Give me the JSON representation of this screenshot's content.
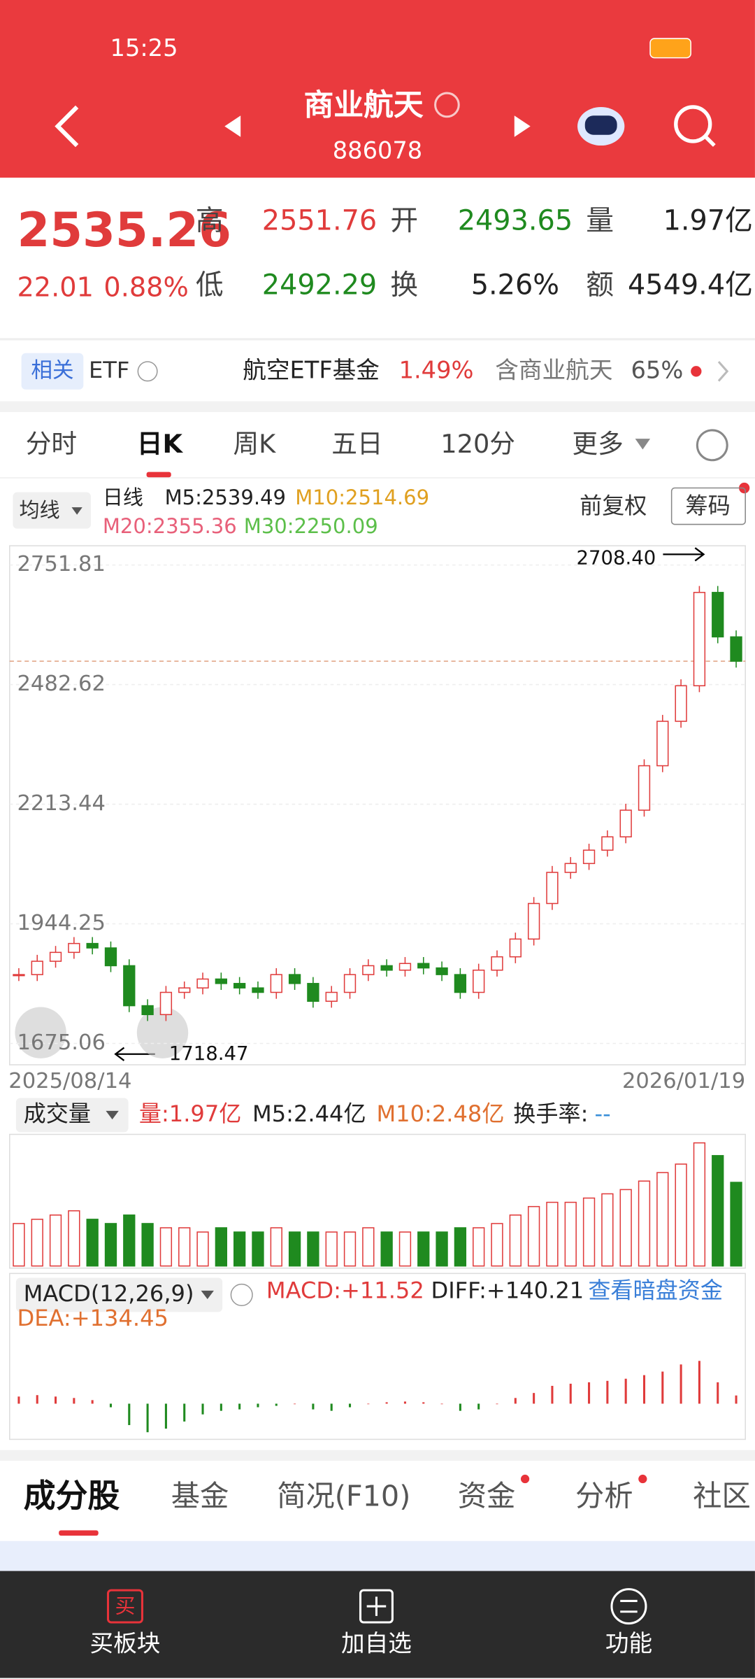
{
  "status_bar": {
    "time": "15:25"
  },
  "header": {
    "title": "商业航天",
    "code": "886078"
  },
  "quote": {
    "price": 2535.26,
    "change": "22.01",
    "change_pct": "0.88%",
    "fields": [
      {
        "label": "高",
        "value": "2551.76"
      },
      {
        "label": "开",
        "value": "2493.65"
      },
      {
        "label": "量",
        "value": "1.97亿"
      },
      {
        "label": "低",
        "value": "2492.29"
      },
      {
        "label": "换",
        "value": "5.26%"
      },
      {
        "label": "额",
        "value": "4549.4亿"
      }
    ]
  },
  "etf": {
    "badge": "相关",
    "label": "ETF",
    "name": "航空ETF基金",
    "pct": "1.49%",
    "holds": "含商业航天",
    "holds_pct": "65%"
  },
  "period_tabs": [
    "分时",
    "日K",
    "周K",
    "五日",
    "120分",
    "更多"
  ],
  "ma_legend": {
    "selector": "均线",
    "kind": "日线",
    "m5": "M5:2539.49",
    "m10": "M10:2514.69",
    "m20": "M20:2355.36",
    "m30": "M30:2250.09",
    "adjust": "前复权",
    "chips": "筹码"
  },
  "kline": {
    "type": "candlestick",
    "close": [
      1830,
      1860,
      1880,
      1900,
      1890,
      1850,
      1760,
      1740,
      1790,
      1800,
      1820,
      1810,
      1800,
      1790,
      1830,
      1810,
      1770,
      1790,
      1830,
      1850,
      1840,
      1855,
      1845,
      1830,
      1790,
      1840,
      1870,
      1910,
      1990,
      2060,
      2080,
      2110,
      2140,
      2200,
      2300,
      2400,
      2480,
      2690,
      2590,
      2535.26
    ],
    "ylim": [
      1627,
      2795
    ],
    "yticks": [
      2751.81,
      2482.62,
      2213.44,
      1944.25,
      1675.06
    ],
    "x_start": "2025/08/14",
    "x_end": "2026/01/19",
    "high_label": {
      "value": 2708.4,
      "label": "2708.40"
    },
    "low_label": 1718.47
  },
  "volume": {
    "type": "bar",
    "selector": "成交量",
    "vol": "量:1.97亿",
    "m5": "M5:2.44亿",
    "m10": "M10:2.48亿",
    "turnover": "换手率:",
    "turnover_value": "--",
    "values": [
      1.0,
      1.1,
      1.2,
      1.3,
      1.1,
      1.0,
      1.2,
      1.0,
      0.9,
      0.9,
      0.8,
      0.9,
      0.8,
      0.8,
      0.9,
      0.8,
      0.8,
      0.8,
      0.8,
      0.9,
      0.8,
      0.8,
      0.8,
      0.8,
      0.9,
      0.9,
      1.0,
      1.2,
      1.4,
      1.5,
      1.5,
      1.6,
      1.7,
      1.8,
      2.0,
      2.2,
      2.4,
      2.9,
      2.6,
      1.97
    ],
    "ylim": [
      0,
      3.05
    ]
  },
  "macd": {
    "type": "bar",
    "selector": "MACD(12,26,9)",
    "macd": "MACD:+11.52",
    "diff": "DIFF:+140.21",
    "link": "查看暗盘资金",
    "dea": "DEA:+134.45",
    "values": [
      10,
      12,
      10,
      8,
      5,
      -5,
      -30,
      -40,
      -35,
      -25,
      -15,
      -10,
      -8,
      -5,
      -3,
      0,
      -8,
      -10,
      -5,
      0,
      2,
      3,
      2,
      0,
      -10,
      -8,
      0,
      8,
      15,
      25,
      28,
      30,
      32,
      35,
      40,
      45,
      55,
      60,
      30,
      11.52
    ],
    "ylim": [
      -50,
      100
    ]
  },
  "bottom_tabs": [
    "成分股",
    "基金",
    "简况(F10)",
    "资金",
    "分析",
    "社区"
  ],
  "nav": [
    {
      "icon": "买",
      "label": "买板块"
    },
    {
      "label": "加自选"
    },
    {
      "label": "功能"
    }
  ]
}
